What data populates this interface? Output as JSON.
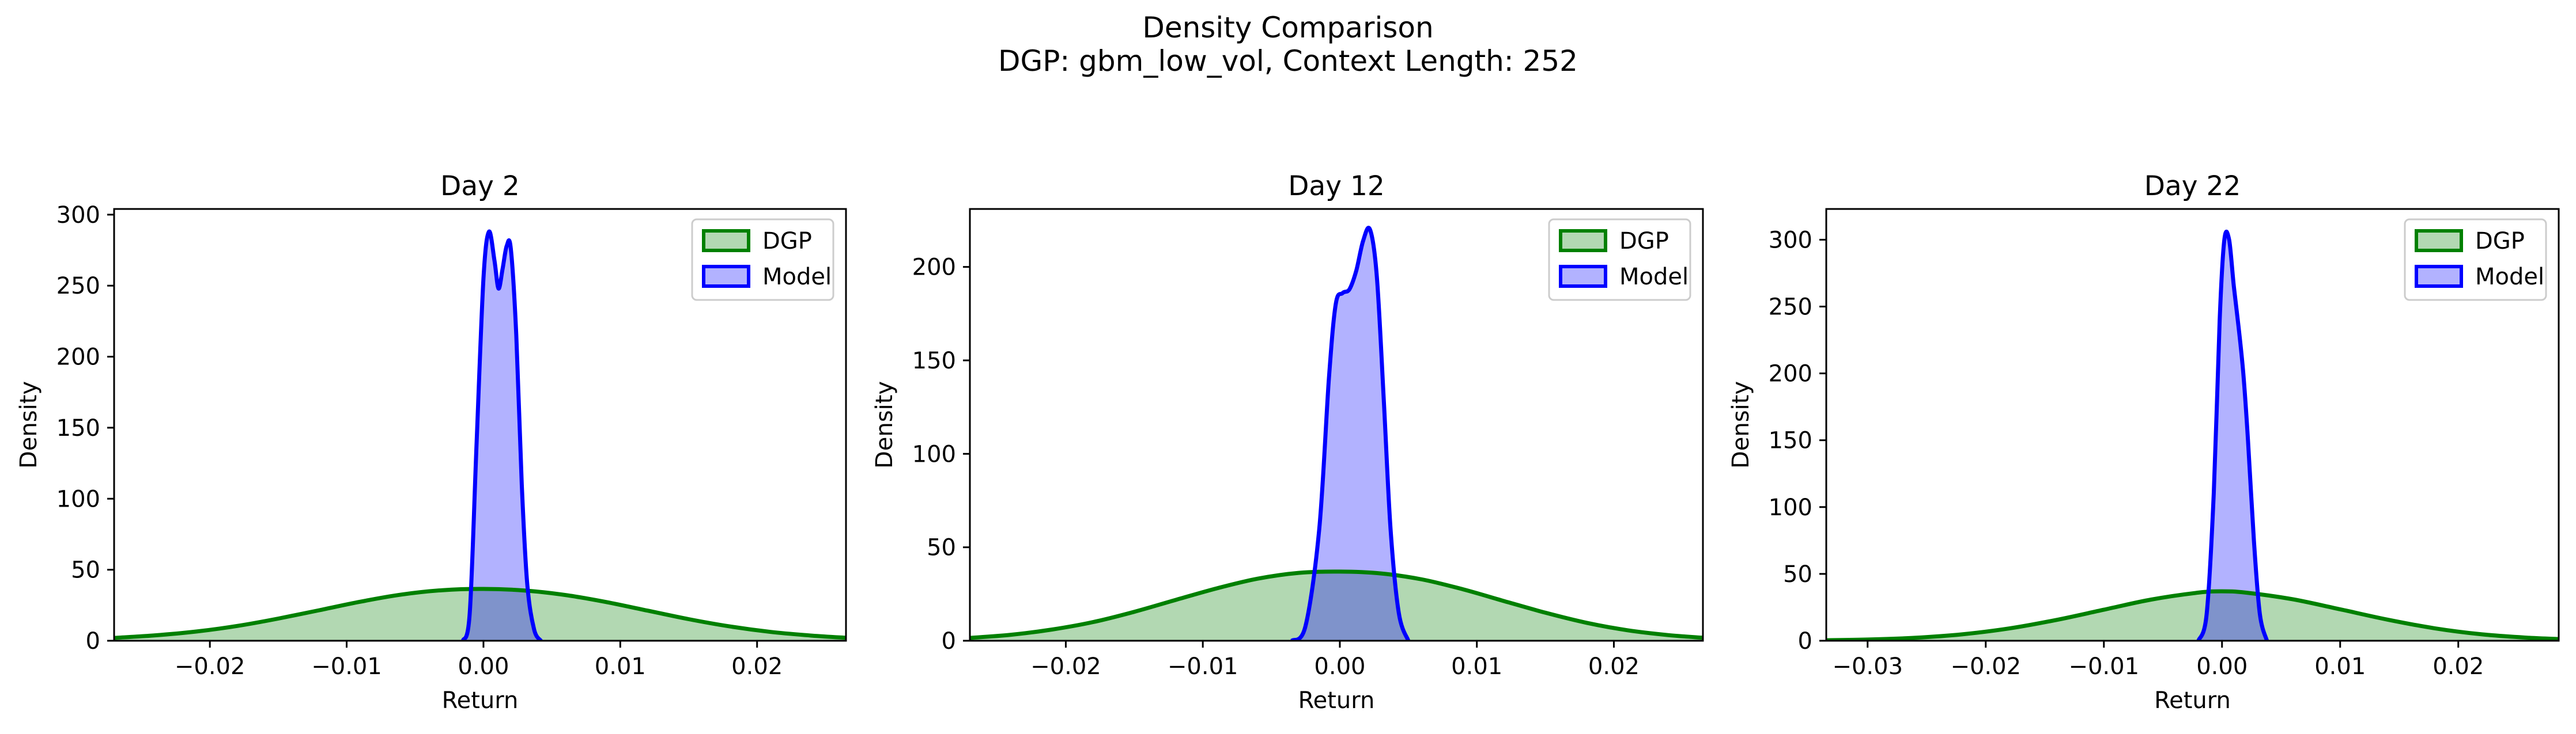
{
  "figure": {
    "title_line1": "Density Comparison",
    "title_line2": "DGP: gbm_low_vol, Context Length: 252"
  },
  "colors": {
    "dgp_line": "#008000",
    "dgp_fill": "#b2d8b2",
    "model_line": "#0000ff",
    "model_fill": "#b2b2ff",
    "overlap_fill": "#7f93cb"
  },
  "chart_data": [
    {
      "type": "area",
      "title": "Day 2",
      "xlabel": "Return",
      "ylabel": "Density",
      "xlim": [
        -0.027,
        0.0265
      ],
      "ylim": [
        0,
        304
      ],
      "xticks": [
        -0.02,
        -0.01,
        0.0,
        0.01,
        0.02
      ],
      "xtick_labels": [
        "−0.02",
        "−0.01",
        "0.00",
        "0.01",
        "0.02"
      ],
      "yticks": [
        0,
        50,
        100,
        150,
        200,
        250,
        300
      ],
      "legend": "top-right",
      "series": [
        {
          "name": "DGP",
          "x": [
            -0.027,
            -0.024,
            -0.021,
            -0.018,
            -0.015,
            -0.012,
            -0.009,
            -0.006,
            -0.003,
            0.0,
            0.003,
            0.006,
            0.009,
            0.012,
            0.015,
            0.018,
            0.021,
            0.024,
            0.0265
          ],
          "y": [
            2,
            3.8,
            6.5,
            10.4,
            15.6,
            21.5,
            27.5,
            32.5,
            35.6,
            36.5,
            35.4,
            32.2,
            27.2,
            21.2,
            15.2,
            10.1,
            6.2,
            3.6,
            2.1
          ]
        },
        {
          "name": "Model",
          "x": [
            -0.0015,
            -0.001,
            -0.0005,
            0.0,
            0.0004,
            0.0008,
            0.0011,
            0.0014,
            0.0017,
            0.002,
            0.0024,
            0.0028,
            0.0032,
            0.0037,
            0.0042
          ],
          "y": [
            0,
            20,
            140,
            255,
            288,
            268,
            248,
            262,
            278,
            276,
            215,
            110,
            40,
            8,
            0
          ]
        }
      ]
    },
    {
      "type": "area",
      "title": "Day 12",
      "xlabel": "Return",
      "ylabel": "Density",
      "xlim": [
        -0.027,
        0.0265
      ],
      "ylim": [
        0,
        231
      ],
      "xticks": [
        -0.02,
        -0.01,
        0.0,
        0.01,
        0.02
      ],
      "xtick_labels": [
        "−0.02",
        "−0.01",
        "0.00",
        "0.01",
        "0.02"
      ],
      "yticks": [
        0,
        50,
        100,
        150,
        200
      ],
      "legend": "top-right",
      "series": [
        {
          "name": "DGP",
          "x": [
            -0.027,
            -0.024,
            -0.021,
            -0.018,
            -0.015,
            -0.012,
            -0.009,
            -0.006,
            -0.003,
            0.0,
            0.003,
            0.006,
            0.009,
            0.012,
            0.015,
            0.018,
            0.021,
            0.024,
            0.0265
          ],
          "y": [
            1.5,
            3.2,
            6.0,
            10.0,
            15.5,
            21.8,
            28.0,
            33.2,
            36.3,
            37.0,
            36.0,
            32.8,
            27.5,
            21.2,
            15.0,
            9.6,
            5.6,
            3.0,
            1.6
          ]
        },
        {
          "name": "Model",
          "x": [
            -0.0035,
            -0.0025,
            -0.0015,
            -0.0008,
            -0.0003,
            0.0002,
            0.0007,
            0.0012,
            0.0017,
            0.0022,
            0.0027,
            0.0032,
            0.0037,
            0.0043,
            0.005
          ],
          "y": [
            0,
            8,
            60,
            140,
            180,
            186,
            188,
            198,
            214,
            220,
            195,
            130,
            60,
            15,
            0
          ]
        }
      ]
    },
    {
      "type": "area",
      "title": "Day 22",
      "xlabel": "Return",
      "ylabel": "Density",
      "xlim": [
        -0.0335,
        0.0285
      ],
      "ylim": [
        0,
        323
      ],
      "xticks": [
        -0.03,
        -0.02,
        -0.01,
        0.0,
        0.01,
        0.02
      ],
      "xtick_labels": [
        "−0.03",
        "−0.02",
        "−0.01",
        "0.00",
        "0.01",
        "0.02"
      ],
      "yticks": [
        0,
        50,
        100,
        150,
        200,
        250,
        300
      ],
      "legend": "top-right",
      "series": [
        {
          "name": "DGP",
          "x": [
            -0.0335,
            -0.03,
            -0.026,
            -0.022,
            -0.018,
            -0.014,
            -0.01,
            -0.006,
            -0.002,
            0.0,
            0.002,
            0.006,
            0.01,
            0.014,
            0.018,
            0.022,
            0.026,
            0.0285
          ],
          "y": [
            0.4,
            0.9,
            2.2,
            4.8,
            9.2,
            15.6,
            23.2,
            30.8,
            36.0,
            37.0,
            36.0,
            31.0,
            23.5,
            15.8,
            9.3,
            4.8,
            2.2,
            1.3
          ]
        },
        {
          "name": "Model",
          "x": [
            -0.002,
            -0.0013,
            -0.0007,
            -0.0002,
            0.0002,
            0.0006,
            0.001,
            0.0014,
            0.0018,
            0.0022,
            0.0027,
            0.0032,
            0.0038
          ],
          "y": [
            0,
            20,
            110,
            240,
            300,
            300,
            265,
            235,
            200,
            150,
            75,
            20,
            0
          ]
        }
      ]
    }
  ]
}
